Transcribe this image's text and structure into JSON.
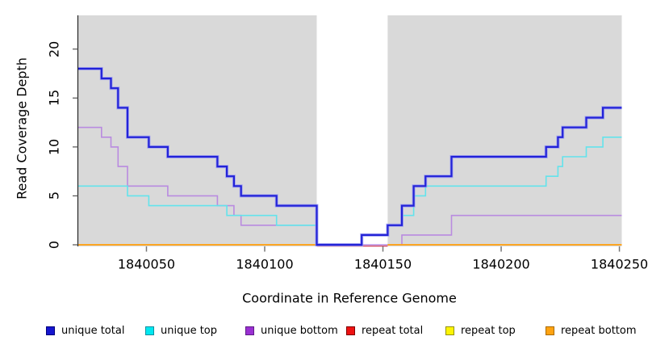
{
  "chart_data": {
    "type": "line",
    "subtype": "step",
    "title": "",
    "xlabel": "Coordinate in Reference Genome",
    "ylabel": "Read Coverage Depth",
    "xlim": [
      1840021,
      1840251
    ],
    "ylim": [
      0,
      23.45
    ],
    "x_ticks": [
      1840050,
      1840100,
      1840150,
      1840200,
      1840250
    ],
    "y_ticks": [
      0,
      5,
      10,
      15,
      20
    ],
    "grid": false,
    "plot_background": "#d9d9d9",
    "masked_region": {
      "start": 1840122,
      "end": 1840152,
      "color": "#ffffff"
    },
    "legend_position": "bottom",
    "draw_order": [
      "unique bottom",
      "repeat total",
      "repeat top",
      "repeat bottom",
      "unique top",
      "unique total"
    ],
    "series": [
      {
        "name": "unique total",
        "color": "#2323d7",
        "halo": "#9c9cf2",
        "width": 2.2,
        "points": [
          [
            1840021,
            18
          ],
          [
            1840031,
            17
          ],
          [
            1840035,
            16
          ],
          [
            1840038,
            14
          ],
          [
            1840042,
            11
          ],
          [
            1840051,
            10
          ],
          [
            1840059,
            9
          ],
          [
            1840080,
            8
          ],
          [
            1840084,
            7
          ],
          [
            1840087,
            6
          ],
          [
            1840090,
            5
          ],
          [
            1840105,
            4
          ],
          [
            1840122,
            0
          ],
          [
            1840141,
            1
          ],
          [
            1840152,
            2
          ],
          [
            1840158,
            4
          ],
          [
            1840163,
            6
          ],
          [
            1840168,
            7
          ],
          [
            1840179,
            9
          ],
          [
            1840219,
            10
          ],
          [
            1840224,
            11
          ],
          [
            1840226,
            12
          ],
          [
            1840236,
            13
          ],
          [
            1840243,
            14
          ]
        ]
      },
      {
        "name": "unique top",
        "color": "#63e3ec",
        "width": 1.6,
        "points": [
          [
            1840021,
            6
          ],
          [
            1840042,
            5
          ],
          [
            1840051,
            4
          ],
          [
            1840084,
            3
          ],
          [
            1840105,
            2
          ],
          [
            1840122,
            0
          ],
          [
            1840141,
            1
          ],
          [
            1840152,
            2
          ],
          [
            1840158,
            3
          ],
          [
            1840163,
            5
          ],
          [
            1840168,
            6
          ],
          [
            1840219,
            7
          ],
          [
            1840224,
            8
          ],
          [
            1840226,
            9
          ],
          [
            1840236,
            10
          ],
          [
            1840243,
            11
          ]
        ]
      },
      {
        "name": "unique bottom",
        "color": "#b98be0",
        "width": 1.6,
        "points": [
          [
            1840021,
            12
          ],
          [
            1840031,
            11
          ],
          [
            1840035,
            10
          ],
          [
            1840038,
            8
          ],
          [
            1840042,
            6
          ],
          [
            1840059,
            5
          ],
          [
            1840080,
            4
          ],
          [
            1840087,
            3
          ],
          [
            1840090,
            2
          ],
          [
            1840122,
            0
          ],
          [
            1840158,
            1
          ],
          [
            1840179,
            3
          ]
        ]
      },
      {
        "name": "repeat total",
        "color": "#d0425c",
        "width": 1.3,
        "value": 0,
        "y_offset": 1.6,
        "segments": [
          [
            1840122,
            1840152
          ]
        ]
      },
      {
        "name": "repeat top",
        "color": "#f5e600",
        "width": 1.6,
        "value": 0,
        "y_offset": 0,
        "segments": [
          [
            1840021,
            1840122
          ],
          [
            1840152,
            1840251
          ]
        ]
      },
      {
        "name": "repeat bottom",
        "color": "#ff9e1a",
        "width": 1.8,
        "value": 0,
        "y_offset": 0,
        "segments": [
          [
            1840021,
            1840122
          ],
          [
            1840152,
            1840251
          ]
        ]
      }
    ]
  },
  "legend": {
    "items": [
      {
        "label": "unique total",
        "swatch": "#1515cf",
        "border": "#00007a"
      },
      {
        "label": "unique top",
        "swatch": "#00e8f0",
        "border": "#0e8fa0"
      },
      {
        "label": "unique bottom",
        "swatch": "#9a30d2",
        "border": "#5e1b86"
      },
      {
        "label": "repeat total",
        "swatch": "#ee1111",
        "border": "#7e0000"
      },
      {
        "label": "repeat top",
        "swatch": "#fdf403",
        "border": "#93910a"
      },
      {
        "label": "repeat bottom",
        "swatch": "#ffa311",
        "border": "#a96a00"
      }
    ]
  }
}
